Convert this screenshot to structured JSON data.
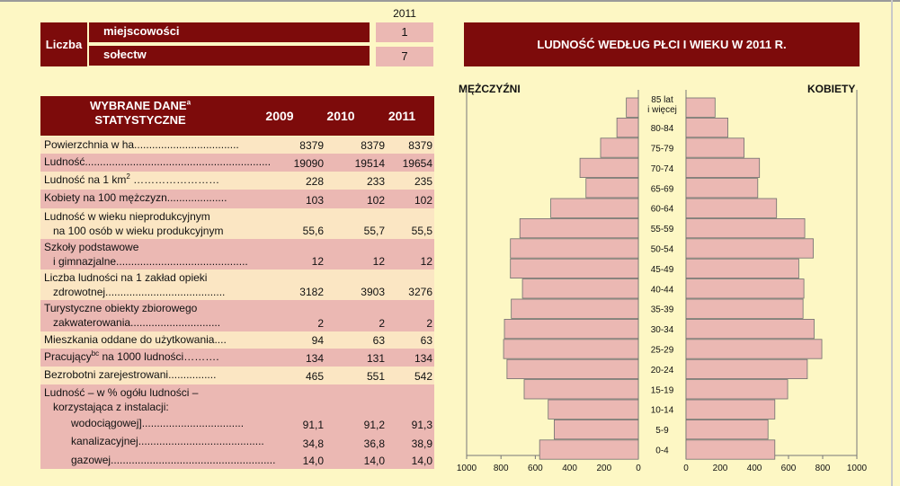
{
  "counts": {
    "year": "2011",
    "group_label": "Liczba",
    "rows": [
      {
        "label": "miejscowości",
        "value": "1"
      },
      {
        "label": "sołectw",
        "value": "7"
      }
    ]
  },
  "stats": {
    "header_label_line1": "WYBRANE DANE",
    "header_label_sup": "a",
    "header_label_line2": "STATYSTYCZNE",
    "years": [
      "2009",
      "2010",
      "2011"
    ],
    "rows": [
      {
        "lines": [
          "Powierzchnia w ha..................................."
        ],
        "values": [
          "8379",
          "8379",
          "8379"
        ]
      },
      {
        "lines": [
          "Ludność.............................................................."
        ],
        "values": [
          "19090",
          "19514",
          "19654"
        ]
      },
      {
        "lines": [
          "Ludność na 1 km"
        ],
        "sup": "2",
        "suffix": " ……………………",
        "values": [
          "228",
          "233",
          "235"
        ]
      },
      {
        "lines": [
          "Kobiety na 100 mężczyzn...................."
        ],
        "values": [
          "103",
          "102",
          "102"
        ]
      },
      {
        "lines": [
          "Ludność w wieku nieprodukcyjnym",
          "   na 100 osób w wieku produkcyjnym"
        ],
        "values": [
          "55,6",
          "55,7",
          "55,5"
        ]
      },
      {
        "lines": [
          "Szkoły podstawowe",
          "   i gimnazjalne............................................"
        ],
        "values": [
          "12",
          "12",
          "12"
        ]
      },
      {
        "lines": [
          "Liczba ludności na 1 zakład opieki",
          "   zdrowotnej........................................"
        ],
        "values": [
          "3182",
          "3903",
          "3276"
        ]
      },
      {
        "lines": [
          "Turystyczne obiekty zbiorowego",
          "   zakwaterowania.............................."
        ],
        "values": [
          "2",
          "2",
          "2"
        ]
      },
      {
        "lines": [
          "Mieszkania oddane do użytkowania...."
        ],
        "values": [
          "94",
          "63",
          "63"
        ]
      },
      {
        "lines": [
          "Pracujący"
        ],
        "sup": "bc",
        "suffix": " na 1000 ludności……….",
        "values": [
          "134",
          "131",
          "134"
        ]
      },
      {
        "lines": [
          "Bezrobotni zarejestrowani................"
        ],
        "values": [
          "465",
          "551",
          "542"
        ]
      },
      {
        "lines": [
          "Ludność – w % ogółu ludności –",
          "   korzystająca z instalacji:"
        ],
        "values": [
          "",
          "",
          ""
        ]
      },
      {
        "lines": [
          "         wodociągowej].................................."
        ],
        "values": [
          "91,1",
          "91,2",
          "91,3"
        ]
      },
      {
        "lines": [
          "         kanalizacyjnej.........................................."
        ],
        "values": [
          "34,8",
          "36,8",
          "38,9"
        ]
      },
      {
        "lines": [
          "         gazowej......................................................."
        ],
        "values": [
          "14,0",
          "14,0",
          "14,0"
        ]
      }
    ]
  },
  "chart_data": {
    "type": "bar",
    "title": "LUDNOŚĆ WEDŁUG PŁCI I WIEKU W 2011 R.",
    "left_label": "MĘŻCZYŹNI",
    "right_label": "KOBIETY",
    "categories": [
      "85 lat i więcej",
      "80-84",
      "75-79",
      "70-74",
      "65-69",
      "60-64",
      "55-59",
      "50-54",
      "45-49",
      "40-44",
      "35-39",
      "30-34",
      "25-29",
      "20-24",
      "15-19",
      "10-14",
      "5-9",
      "0-4"
    ],
    "series": [
      {
        "name": "MĘŻCZYŹNI",
        "values": [
          70,
          125,
          220,
          340,
          305,
          510,
          690,
          745,
          745,
          675,
          740,
          780,
          785,
          765,
          665,
          525,
          490,
          575
        ]
      },
      {
        "name": "KOBIETY",
        "values": [
          170,
          245,
          340,
          430,
          420,
          530,
          695,
          745,
          660,
          690,
          685,
          750,
          795,
          710,
          595,
          520,
          480,
          520
        ]
      }
    ],
    "xlim": [
      0,
      1000
    ],
    "ticks": [
      "1000",
      "800",
      "600",
      "400",
      "200",
      "0"
    ],
    "ticks_right": [
      "0",
      "200",
      "400",
      "600",
      "800",
      "1000"
    ],
    "colors": {
      "bar": "#ebb8b3",
      "bar_stroke": "#6f6f6f",
      "header": "#7d0b0b"
    }
  }
}
